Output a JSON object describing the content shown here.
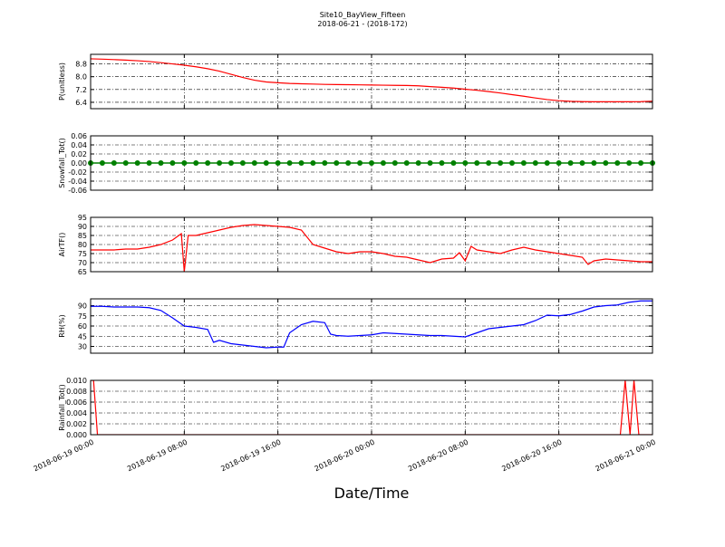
{
  "title": "Site10_BayView_Fifteen",
  "subtitle": "2018-06-21 - (2018-172)",
  "xlabel": "Date/Time",
  "x_axis": {
    "xlim": [
      "2018-06-19 00:00",
      "2018-06-21 00:00"
    ],
    "xticks": [
      "2018-06-19 00:00",
      "2018-06-19 08:00",
      "2018-06-19 16:00",
      "2018-06-20 00:00",
      "2018-06-20 08:00",
      "2018-06-20 16:00",
      "2018-06-21 00:00"
    ]
  },
  "chart_data": [
    {
      "type": "line",
      "ylabel": "P(unitless)",
      "color": "#ff0000",
      "ylim": [
        6.0,
        9.4
      ],
      "grid": true,
      "yticks": [
        6.4,
        7.2,
        {
          "value": 8.0,
          "label": "8.0"
        },
        8.8
      ],
      "x": [
        "2018-06-19 00:00",
        "2018-06-19 01:00",
        "2018-06-19 02:00",
        "2018-06-19 03:00",
        "2018-06-19 04:00",
        "2018-06-19 05:00",
        "2018-06-19 06:00",
        "2018-06-19 07:00",
        "2018-06-19 08:00",
        "2018-06-19 09:00",
        "2018-06-19 10:00",
        "2018-06-19 11:00",
        "2018-06-19 12:00",
        "2018-06-19 13:00",
        "2018-06-19 14:00",
        "2018-06-19 15:00",
        "2018-06-19 16:00",
        "2018-06-19 17:00",
        "2018-06-19 18:00",
        "2018-06-19 19:00",
        "2018-06-19 20:00",
        "2018-06-19 21:00",
        "2018-06-19 22:00",
        "2018-06-19 23:00",
        "2018-06-20 00:00",
        "2018-06-20 01:00",
        "2018-06-20 02:00",
        "2018-06-20 03:00",
        "2018-06-20 04:00",
        "2018-06-20 05:00",
        "2018-06-20 06:00",
        "2018-06-20 07:00",
        "2018-06-20 08:00",
        "2018-06-20 09:00",
        "2018-06-20 10:00",
        "2018-06-20 11:00",
        "2018-06-20 12:00",
        "2018-06-20 13:00",
        "2018-06-20 14:00",
        "2018-06-20 15:00",
        "2018-06-20 16:00",
        "2018-06-20 17:00",
        "2018-06-20 18:00",
        "2018-06-20 19:00",
        "2018-06-20 20:00",
        "2018-06-20 21:00",
        "2018-06-20 22:00",
        "2018-06-20 23:00",
        "2018-06-21 00:00"
      ],
      "values": [
        9.12,
        9.1,
        9.07,
        9.04,
        9.0,
        8.95,
        8.88,
        8.8,
        8.72,
        8.62,
        8.5,
        8.35,
        8.15,
        7.95,
        7.78,
        7.67,
        7.62,
        7.58,
        7.56,
        7.54,
        7.52,
        7.51,
        7.5,
        7.49,
        7.48,
        7.47,
        7.46,
        7.45,
        7.43,
        7.38,
        7.34,
        7.29,
        7.22,
        7.15,
        7.07,
        6.98,
        6.88,
        6.78,
        6.67,
        6.57,
        6.5,
        6.46,
        6.44,
        6.43,
        6.43,
        6.43,
        6.43,
        6.44,
        6.47
      ]
    },
    {
      "type": "line",
      "ylabel": "Snowfall_Tot()",
      "color": "#008000",
      "markers": true,
      "ylim": [
        -0.06,
        0.06
      ],
      "grid": true,
      "yticks": [
        {
          "value": -0.06,
          "label": "-0.06"
        },
        {
          "value": -0.04,
          "label": "-0.04"
        },
        {
          "value": -0.02,
          "label": "-0.02"
        },
        {
          "value": 0,
          "label": "0.00"
        },
        {
          "value": 0.02,
          "label": "0.02"
        },
        {
          "value": 0.04,
          "label": "0.04"
        },
        {
          "value": 0.06,
          "label": "0.06"
        }
      ],
      "x": [
        "2018-06-19 00:00",
        "2018-06-19 01:00",
        "2018-06-19 02:00",
        "2018-06-19 03:00",
        "2018-06-19 04:00",
        "2018-06-19 05:00",
        "2018-06-19 06:00",
        "2018-06-19 07:00",
        "2018-06-19 08:00",
        "2018-06-19 09:00",
        "2018-06-19 10:00",
        "2018-06-19 11:00",
        "2018-06-19 12:00",
        "2018-06-19 13:00",
        "2018-06-19 14:00",
        "2018-06-19 15:00",
        "2018-06-19 16:00",
        "2018-06-19 17:00",
        "2018-06-19 18:00",
        "2018-06-19 19:00",
        "2018-06-19 20:00",
        "2018-06-19 21:00",
        "2018-06-19 22:00",
        "2018-06-19 23:00",
        "2018-06-20 00:00",
        "2018-06-20 01:00",
        "2018-06-20 02:00",
        "2018-06-20 03:00",
        "2018-06-20 04:00",
        "2018-06-20 05:00",
        "2018-06-20 06:00",
        "2018-06-20 07:00",
        "2018-06-20 08:00",
        "2018-06-20 09:00",
        "2018-06-20 10:00",
        "2018-06-20 11:00",
        "2018-06-20 12:00",
        "2018-06-20 13:00",
        "2018-06-20 14:00",
        "2018-06-20 15:00",
        "2018-06-20 16:00",
        "2018-06-20 17:00",
        "2018-06-20 18:00",
        "2018-06-20 19:00",
        "2018-06-20 20:00",
        "2018-06-20 21:00",
        "2018-06-20 22:00",
        "2018-06-20 23:00",
        "2018-06-21 00:00"
      ],
      "values": [
        0,
        0,
        0,
        0,
        0,
        0,
        0,
        0,
        0,
        0,
        0,
        0,
        0,
        0,
        0,
        0,
        0,
        0,
        0,
        0,
        0,
        0,
        0,
        0,
        0,
        0,
        0,
        0,
        0,
        0,
        0,
        0,
        0,
        0,
        0,
        0,
        0,
        0,
        0,
        0,
        0,
        0,
        0,
        0,
        0,
        0,
        0,
        0,
        0
      ]
    },
    {
      "type": "line",
      "ylabel": "AirTF()",
      "color": "#ff0000",
      "ylim": [
        65,
        95
      ],
      "grid": true,
      "yticks": [
        65,
        70,
        75,
        80,
        85,
        90,
        95
      ],
      "x": [
        "2018-06-19 00:00",
        "2018-06-19 01:00",
        "2018-06-19 02:00",
        "2018-06-19 03:00",
        "2018-06-19 04:00",
        "2018-06-19 05:00",
        "2018-06-19 06:00",
        "2018-06-19 07:00",
        "2018-06-19 07:45",
        "2018-06-19 08:00",
        "2018-06-19 08:20",
        "2018-06-19 09:00",
        "2018-06-19 10:00",
        "2018-06-19 11:00",
        "2018-06-19 12:00",
        "2018-06-19 13:00",
        "2018-06-19 14:00",
        "2018-06-19 15:00",
        "2018-06-19 16:00",
        "2018-06-19 17:00",
        "2018-06-19 18:00",
        "2018-06-19 19:00",
        "2018-06-19 20:00",
        "2018-06-19 21:00",
        "2018-06-19 22:00",
        "2018-06-19 23:00",
        "2018-06-20 00:00",
        "2018-06-20 01:00",
        "2018-06-20 02:00",
        "2018-06-20 03:00",
        "2018-06-20 04:00",
        "2018-06-20 05:00",
        "2018-06-20 06:00",
        "2018-06-20 07:00",
        "2018-06-20 07:30",
        "2018-06-20 08:00",
        "2018-06-20 08:30",
        "2018-06-20 09:00",
        "2018-06-20 10:00",
        "2018-06-20 11:00",
        "2018-06-20 12:00",
        "2018-06-20 13:00",
        "2018-06-20 14:00",
        "2018-06-20 15:00",
        "2018-06-20 16:00",
        "2018-06-20 17:00",
        "2018-06-20 18:00",
        "2018-06-20 18:30",
        "2018-06-20 19:00",
        "2018-06-20 20:00",
        "2018-06-20 21:00",
        "2018-06-20 22:00",
        "2018-06-20 23:00",
        "2018-06-21 00:00"
      ],
      "values": [
        77,
        77,
        77,
        77.5,
        77.5,
        78.5,
        80,
        82.5,
        86,
        65,
        85,
        85,
        86.5,
        88,
        89.5,
        90.5,
        91,
        90.5,
        90,
        89.5,
        88,
        80,
        78,
        76,
        75,
        76,
        76,
        75,
        73.5,
        73,
        71.5,
        70,
        72,
        72.5,
        75.5,
        71,
        79,
        77,
        76,
        75,
        77,
        78.5,
        77,
        76,
        75,
        74,
        73,
        69,
        71,
        72,
        71.5,
        71,
        70.5,
        70.5
      ]
    },
    {
      "type": "line",
      "ylabel": "RH(%)",
      "color": "#0000ff",
      "ylim": [
        20,
        100
      ],
      "grid": true,
      "yticks": [
        30,
        45,
        60,
        75,
        90
      ],
      "x": [
        "2018-06-19 00:00",
        "2018-06-19 01:00",
        "2018-06-19 02:00",
        "2018-06-19 03:00",
        "2018-06-19 04:00",
        "2018-06-19 05:00",
        "2018-06-19 06:00",
        "2018-06-19 07:00",
        "2018-06-19 08:00",
        "2018-06-19 09:00",
        "2018-06-19 10:00",
        "2018-06-19 10:30",
        "2018-06-19 11:00",
        "2018-06-19 12:00",
        "2018-06-19 13:00",
        "2018-06-19 14:00",
        "2018-06-19 15:00",
        "2018-06-19 16:00",
        "2018-06-19 16:30",
        "2018-06-19 17:00",
        "2018-06-19 18:00",
        "2018-06-19 19:00",
        "2018-06-19 20:00",
        "2018-06-19 20:30",
        "2018-06-19 21:00",
        "2018-06-19 22:00",
        "2018-06-19 23:00",
        "2018-06-20 00:00",
        "2018-06-20 01:00",
        "2018-06-20 02:00",
        "2018-06-20 03:00",
        "2018-06-20 04:00",
        "2018-06-20 05:00",
        "2018-06-20 06:00",
        "2018-06-20 07:00",
        "2018-06-20 08:00",
        "2018-06-20 09:00",
        "2018-06-20 10:00",
        "2018-06-20 11:00",
        "2018-06-20 12:00",
        "2018-06-20 13:00",
        "2018-06-20 14:00",
        "2018-06-20 15:00",
        "2018-06-20 16:00",
        "2018-06-20 17:00",
        "2018-06-20 18:00",
        "2018-06-20 19:00",
        "2018-06-20 20:00",
        "2018-06-20 21:00",
        "2018-06-20 22:00",
        "2018-06-20 23:00",
        "2018-06-21 00:00"
      ],
      "values": [
        89,
        89,
        88,
        88,
        88,
        87,
        83,
        72,
        60,
        58,
        55,
        36,
        39,
        34,
        32,
        30,
        28,
        29,
        29,
        50,
        62,
        67,
        65,
        48,
        46,
        45,
        46,
        47,
        50,
        49,
        48,
        47,
        46,
        46,
        45,
        44,
        50,
        56,
        58,
        60,
        62,
        68,
        76,
        75,
        77,
        82,
        88,
        90,
        91,
        95,
        97,
        97
      ]
    },
    {
      "type": "line",
      "ylabel": "Rainfall_Tot()",
      "color": "#ff0000",
      "ylim": [
        0,
        0.01
      ],
      "grid": true,
      "yticks": [
        {
          "value": 0,
          "label": "0.000"
        },
        {
          "value": 0.002,
          "label": "0.002"
        },
        {
          "value": 0.004,
          "label": "0.004"
        },
        {
          "value": 0.006,
          "label": "0.006"
        },
        {
          "value": 0.008,
          "label": "0.008"
        },
        {
          "value": 0.01,
          "label": "0.010"
        }
      ],
      "x": [
        "2018-06-19 00:00",
        "2018-06-19 00:15",
        "2018-06-19 00:35",
        "2018-06-20 21:15",
        "2018-06-20 21:40",
        "2018-06-20 22:05",
        "2018-06-20 22:25",
        "2018-06-20 22:50",
        "2018-06-21 00:00"
      ],
      "values": [
        0.01,
        0.01,
        0,
        0,
        0.01,
        0,
        0.01,
        0,
        0
      ]
    }
  ]
}
